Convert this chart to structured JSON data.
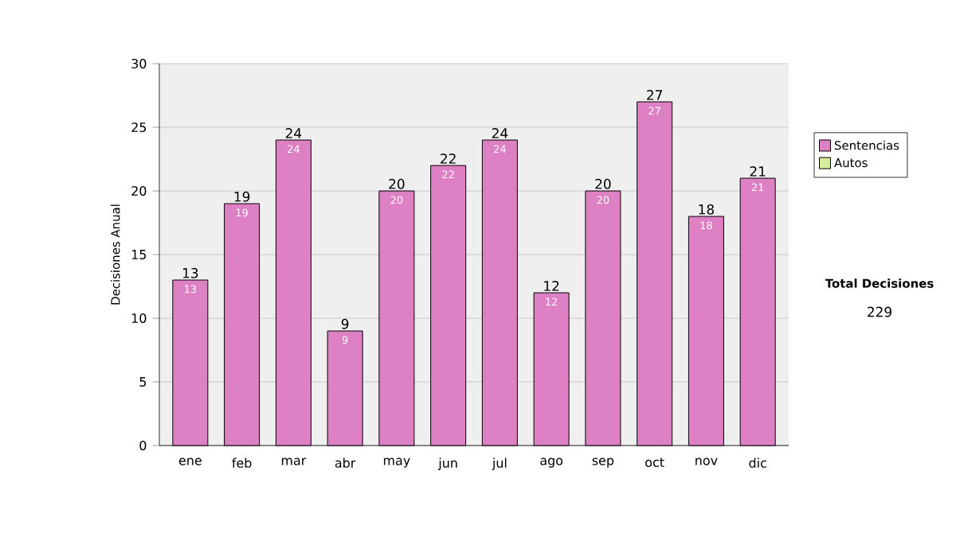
{
  "chart_data": {
    "type": "bar",
    "stacked": true,
    "ylabel": "Decisiones Anual",
    "categories": [
      "ene",
      "feb",
      "mar",
      "abr",
      "may",
      "jun",
      "jul",
      "ago",
      "sep",
      "oct",
      "nov",
      "dic"
    ],
    "series": [
      {
        "name": "Sentencias",
        "color": "#dd80c4",
        "values": [
          13,
          19,
          24,
          9,
          20,
          22,
          24,
          12,
          20,
          27,
          18,
          21
        ],
        "value_labels": [
          "13",
          "19",
          "24",
          "9",
          "20",
          "22",
          "24",
          "12",
          "20",
          "27",
          "18",
          "21"
        ]
      },
      {
        "name": "Autos",
        "color": "#d4ee9c",
        "values": [
          0,
          0,
          0,
          0,
          0,
          0,
          0,
          0,
          0,
          0,
          0,
          0
        ]
      }
    ],
    "totals": [
      "13",
      "19",
      "24",
      "9",
      "20",
      "22",
      "24",
      "12",
      "20",
      "27",
      "18",
      "21"
    ],
    "ylim": [
      0,
      30
    ],
    "yticks": [
      0,
      5,
      10,
      15,
      20,
      25,
      30
    ],
    "grid": "y",
    "legend": "right",
    "annotations": [
      "Total Decisiones",
      "229"
    ]
  }
}
